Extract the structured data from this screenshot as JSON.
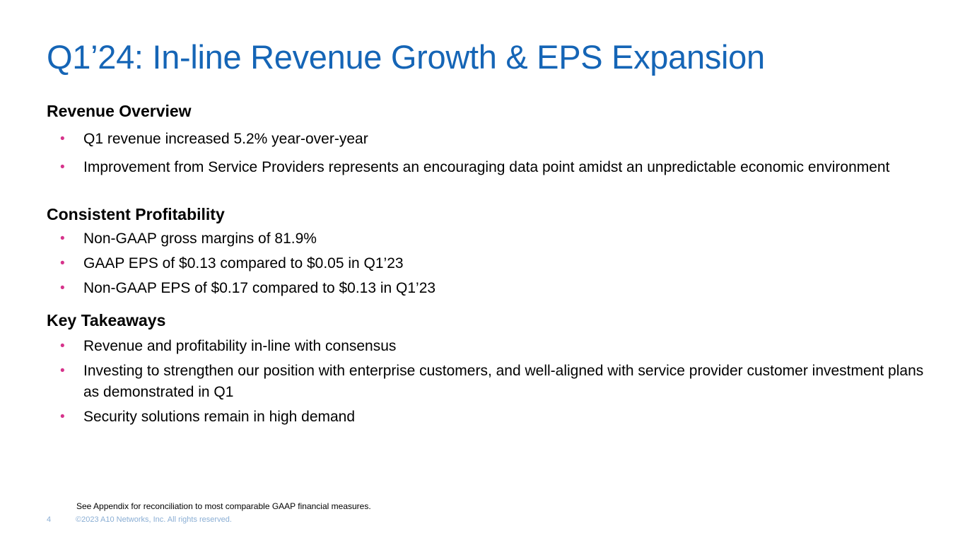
{
  "title": "Q1’24: In-line Revenue Growth & EPS Expansion",
  "sections": [
    {
      "heading": "Revenue Overview",
      "bullets": [
        "Q1 revenue increased 5.2% year-over-year",
        "Improvement from Service Providers represents an encouraging data point amidst an unpredictable economic environment"
      ]
    },
    {
      "heading": "Consistent Profitability",
      "bullets": [
        "Non-GAAP gross margins of 81.9%",
        "GAAP EPS of $0.13 compared to $0.05 in Q1’23",
        "Non-GAAP EPS of $0.17 compared to $0.13 in Q1’23"
      ]
    },
    {
      "heading": "Key Takeaways",
      "bullets": [
        "Revenue and profitability in-line with consensus",
        "Investing to strengthen our position with enterprise customers, and well-aligned with service provider customer investment plans as demonstrated in Q1",
        "Security solutions remain in high demand"
      ]
    }
  ],
  "bullet_char": "•",
  "footnote": "See Appendix for reconciliation to most comparable GAAP financial measures.",
  "footer": {
    "page_number": "4",
    "copyright": "©2023 A10 Networks, Inc. All rights reserved."
  },
  "colors": {
    "title": "#1565b6",
    "bullet": "#d6338b",
    "footer": "#8aaed4"
  }
}
